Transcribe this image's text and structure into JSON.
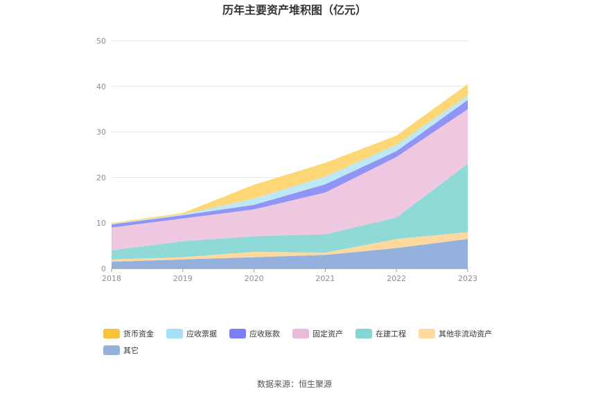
{
  "chart_data": {
    "type": "area",
    "stacked": true,
    "title": "历年主要资产堆积图（亿元）",
    "xlabel": "",
    "ylabel": "",
    "x": [
      "2018",
      "2019",
      "2020",
      "2021",
      "2022",
      "2023"
    ],
    "ylim": [
      0,
      50
    ],
    "yticks": [
      "0",
      "10",
      "20",
      "30",
      "40",
      "50"
    ],
    "grid": true,
    "legend_position": "bottom",
    "series": [
      {
        "name": "其它",
        "color": "#94b0dc",
        "values": [
          1.5,
          2.0,
          2.5,
          3.0,
          4.5,
          6.5
        ]
      },
      {
        "name": "其他非流动资产",
        "color": "#fdd9a0",
        "values": [
          0.5,
          0.5,
          1.2,
          0.5,
          2.0,
          1.5
        ]
      },
      {
        "name": "在建工程",
        "color": "#8fd9d6",
        "values": [
          2.0,
          3.5,
          3.4,
          4.0,
          4.7,
          15.0
        ]
      },
      {
        "name": "固定资产",
        "color": "#eec7e1",
        "values": [
          5.0,
          5.0,
          5.9,
          9.2,
          13.3,
          12.0
        ]
      },
      {
        "name": "应收账款",
        "color": "#8f94f5",
        "values": [
          0.7,
          0.7,
          1.0,
          1.8,
          1.3,
          2.0
        ]
      },
      {
        "name": "应收票据",
        "color": "#bfe8f7",
        "values": [
          0.1,
          0.2,
          1.4,
          1.7,
          1.4,
          1.0
        ]
      },
      {
        "name": "货币资金",
        "color": "#fdd676",
        "values": [
          0.2,
          0.3,
          3.0,
          3.0,
          2.0,
          2.5
        ]
      }
    ],
    "legend": [
      {
        "name": "货币资金",
        "color": "#f9c23c"
      },
      {
        "name": "应收票据",
        "color": "#a5dff7"
      },
      {
        "name": "应收账款",
        "color": "#7b7ef5"
      },
      {
        "name": "固定资产",
        "color": "#e9b9d7"
      },
      {
        "name": "在建工程",
        "color": "#85d6d3"
      },
      {
        "name": "其他非流动资产",
        "color": "#fdd9a0"
      },
      {
        "name": "其它",
        "color": "#94b0dc"
      }
    ]
  },
  "source": "数据来源：恒生聚源"
}
